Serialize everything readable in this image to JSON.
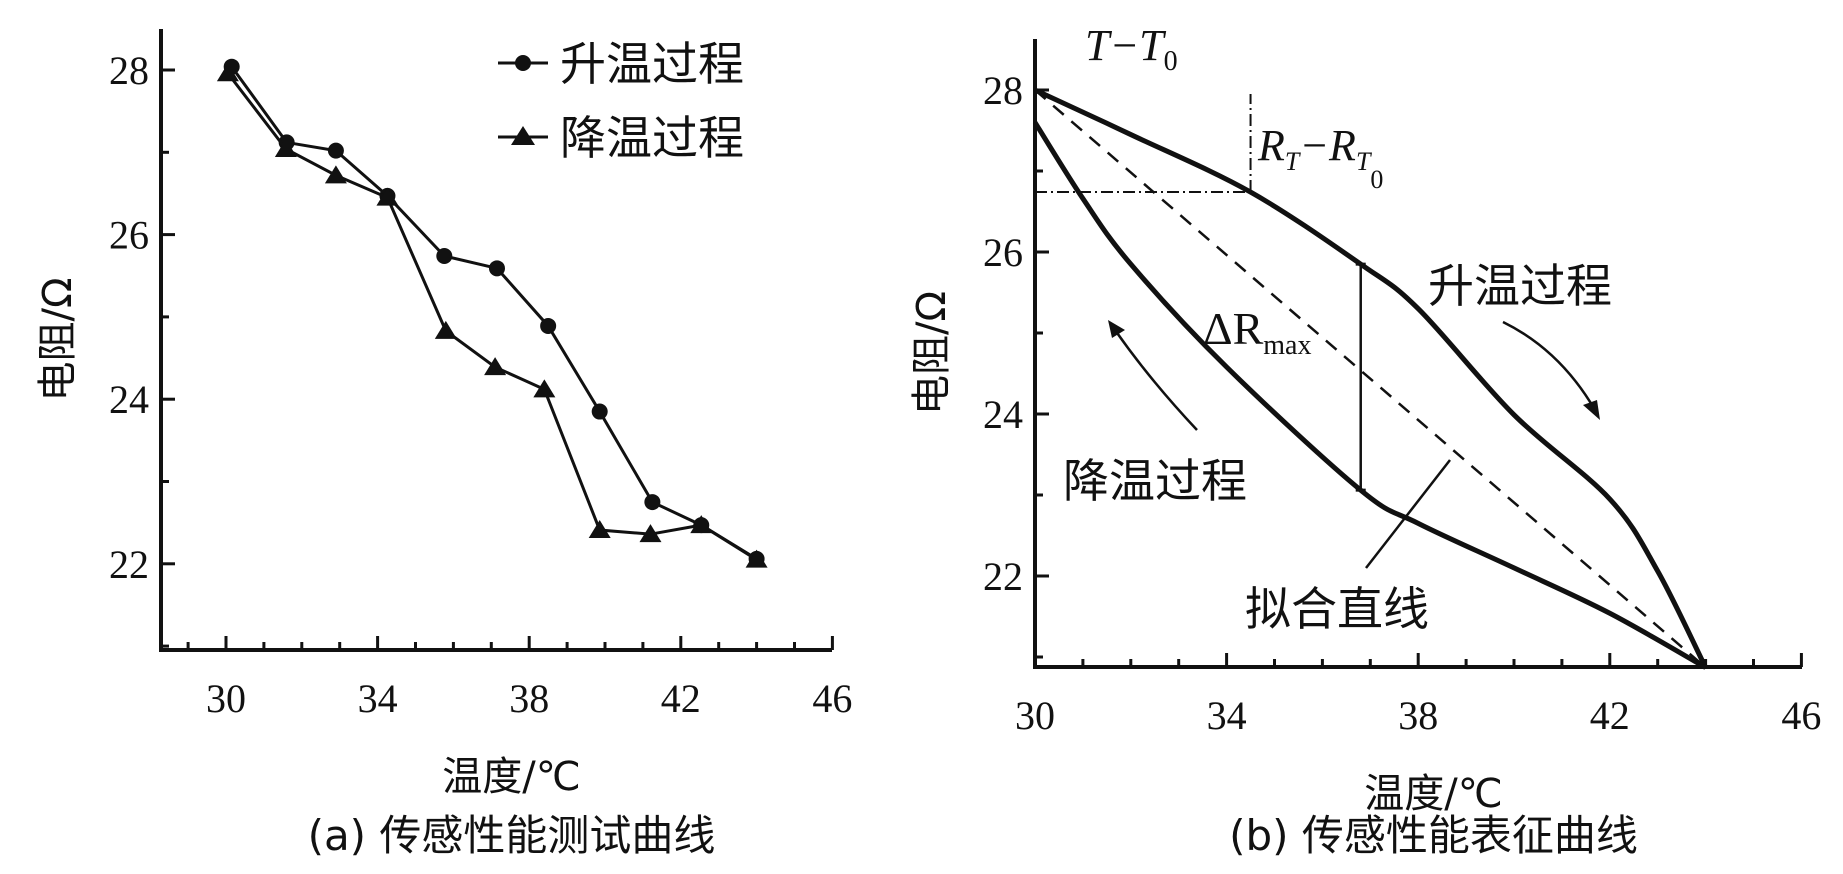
{
  "chart_data": [
    {
      "type": "line",
      "panel": "a",
      "caption": "(a)  传感性能测试曲线",
      "xlabel": "温度/℃",
      "ylabel": "电阻/Ω",
      "xlim": [
        28.3,
        46
      ],
      "ylim": [
        20.96,
        28.5
      ],
      "xticks": [
        30,
        34,
        38,
        42,
        46
      ],
      "yticks": [
        22,
        24,
        26,
        28
      ],
      "legend_position": "top-right",
      "series": [
        {
          "name": "升温过程",
          "marker": "circle",
          "x": [
            30.15,
            31.6,
            32.9,
            34.26,
            35.76,
            37.15,
            38.5,
            39.86,
            41.25,
            42.54,
            44.0
          ],
          "y": [
            28.04,
            27.12,
            27.02,
            26.47,
            25.74,
            25.59,
            24.89,
            23.85,
            22.75,
            22.47,
            22.06
          ]
        },
        {
          "name": "降温过程",
          "marker": "triangle",
          "x": [
            30.05,
            31.58,
            32.9,
            34.26,
            35.8,
            37.1,
            38.4,
            39.86,
            41.2,
            42.54,
            44.0
          ],
          "y": [
            27.96,
            27.04,
            26.72,
            26.45,
            24.83,
            24.39,
            24.12,
            22.41,
            22.36,
            22.47,
            22.05
          ]
        }
      ]
    },
    {
      "type": "line",
      "panel": "b",
      "caption": "(b)  传感性能表征曲线",
      "xlabel": "温度/℃",
      "ylabel": "电阻/Ω",
      "xlim": [
        30,
        46
      ],
      "ylim": [
        20.87,
        28.63
      ],
      "xticks": [
        30,
        34,
        38,
        42,
        46
      ],
      "yticks": [
        22,
        24,
        26,
        28
      ],
      "series": [
        {
          "name": "升温过程",
          "style": "solid",
          "x": [
            30,
            32,
            34.5,
            36.8,
            38,
            40,
            42,
            43,
            44
          ],
          "y": [
            28.0,
            27.45,
            26.74,
            25.85,
            25.3,
            23.99,
            22.95,
            22.06,
            20.87
          ]
        },
        {
          "name": "降温过程",
          "style": "solid",
          "x": [
            30,
            31,
            32,
            34,
            36.8,
            38,
            40,
            42,
            44
          ],
          "y": [
            27.6,
            26.66,
            25.85,
            24.58,
            23.06,
            22.65,
            22.1,
            21.54,
            20.87
          ]
        },
        {
          "name": "拟合直线",
          "style": "dashed",
          "x": [
            30,
            44
          ],
          "y": [
            28.0,
            20.87
          ]
        }
      ],
      "annotations": {
        "t_label": {
          "main": "T−T",
          "sub": "0"
        },
        "r_label": {
          "main": "R",
          "sub1": "T",
          "mid": "−R",
          "sub2": "T",
          "sub3": "0"
        },
        "delta_label": {
          "main": "ΔR",
          "sub": "max"
        },
        "heating_label": "升温过程",
        "cooling_label": "降温过程",
        "fit_label": "拟合直线",
        "ref_point": {
          "x": 34.5,
          "y": 26.74
        },
        "delta_max": {
          "x": 36.8,
          "y_top": 25.85,
          "y_bottom": 23.06
        }
      }
    }
  ]
}
